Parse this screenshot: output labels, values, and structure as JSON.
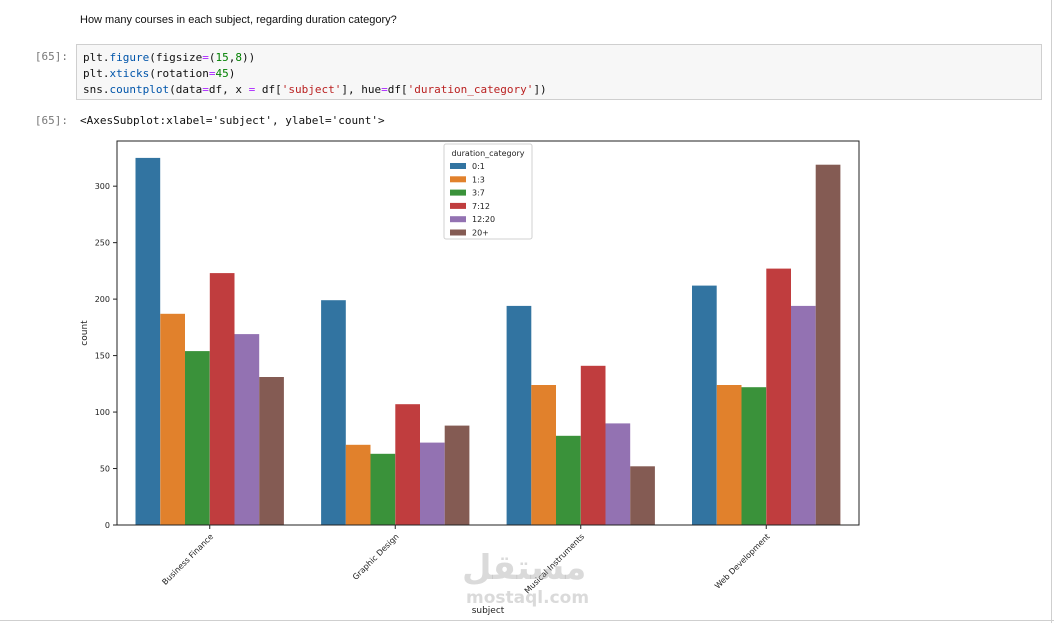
{
  "markdown": {
    "question": "How many courses in each subject, regarding duration category?"
  },
  "input_cell": {
    "prompt": "[65]:",
    "line1": {
      "a": "plt.",
      "fn": "figure",
      "b": "(figsize",
      "eq": "=",
      "c": "(",
      "n1": "15",
      "comma": ",",
      "n2": "8",
      "d": "))"
    },
    "line2": {
      "a": "plt.",
      "fn": "xticks",
      "b": "(rotation",
      "eq": "=",
      "n": "45",
      "c": ")"
    },
    "line3": {
      "a": "sns.",
      "fn": "countplot",
      "b": "(data",
      "eq1": "=",
      "c": "df, x ",
      "eq2": "=",
      "d": " df[",
      "s1": "'subject'",
      "e": "], hue",
      "eq3": "=",
      "f": "df[",
      "s2": "'duration_category'",
      "g": "])"
    }
  },
  "output_cell": {
    "prompt": "[65]:",
    "text": "<AxesSubplot:xlabel='subject', ylabel='count'>"
  },
  "watermark": {
    "arabic": "مستقل",
    "latin": "mostaql.com"
  },
  "chart_data": {
    "type": "bar",
    "xlabel": "subject",
    "ylabel": "count",
    "ylim": [
      0,
      340
    ],
    "yticks": [
      0,
      50,
      100,
      150,
      200,
      250,
      300
    ],
    "categories": [
      "Business Finance",
      "Graphic Design",
      "Musical Instruments",
      "Web Development"
    ],
    "legend_title": "duration_category",
    "legend_position": "top-center",
    "grid": false,
    "series": [
      {
        "name": "0:1",
        "color": "#3274a1",
        "values": [
          325,
          199,
          194,
          212
        ]
      },
      {
        "name": "1:3",
        "color": "#e1812c",
        "values": [
          187,
          71,
          124,
          124
        ]
      },
      {
        "name": "3:7",
        "color": "#3a923a",
        "values": [
          154,
          63,
          79,
          122
        ]
      },
      {
        "name": "7:12",
        "color": "#c03d3e",
        "values": [
          223,
          107,
          141,
          227
        ]
      },
      {
        "name": "12:20",
        "color": "#9372b2",
        "values": [
          169,
          73,
          90,
          194
        ]
      },
      {
        "name": "20+",
        "color": "#845b53",
        "values": [
          131,
          88,
          52,
          319
        ]
      }
    ]
  }
}
